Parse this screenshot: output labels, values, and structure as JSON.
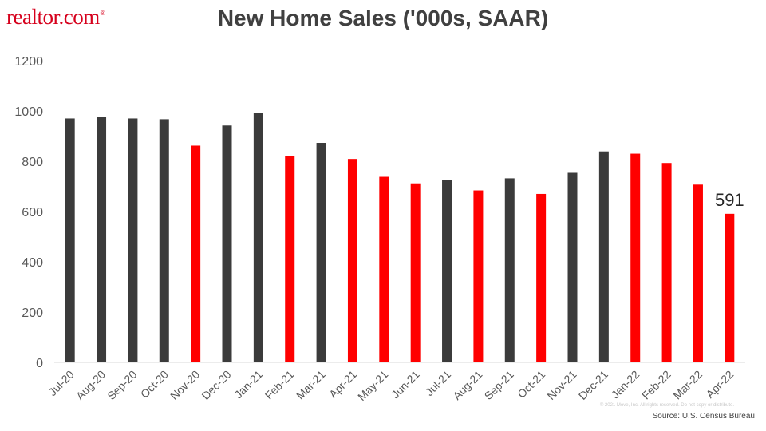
{
  "logo": {
    "text": "realtor.com",
    "mark": "®"
  },
  "chart_data": {
    "type": "bar",
    "title": "New Home Sales ('000s, SAAR)",
    "xlabel": "",
    "ylabel": "",
    "ylim": [
      0,
      1200
    ],
    "yticks": [
      "0",
      "200",
      "400",
      "600",
      "800",
      "1000",
      "1200"
    ],
    "grid": false,
    "categories": [
      "Jul-20",
      "Aug-20",
      "Sep-20",
      "Oct-20",
      "Nov-20",
      "Dec-20",
      "Jan-21",
      "Feb-21",
      "Mar-21",
      "Apr-21",
      "May-21",
      "Jun-21",
      "Jul-21",
      "Aug-21",
      "Sep-21",
      "Oct-21",
      "Nov-21",
      "Dec-21",
      "Jan-22",
      "Feb-22",
      "Mar-22",
      "Apr-22"
    ],
    "values": [
      970,
      977,
      970,
      967,
      862,
      942,
      993,
      821,
      873,
      809,
      738,
      712,
      725,
      684,
      732,
      670,
      754,
      839,
      830,
      793,
      707,
      591
    ],
    "bar_colors": [
      "#3b3b3b",
      "#3b3b3b",
      "#3b3b3b",
      "#3b3b3b",
      "#ff0000",
      "#3b3b3b",
      "#3b3b3b",
      "#ff0000",
      "#3b3b3b",
      "#ff0000",
      "#ff0000",
      "#ff0000",
      "#3b3b3b",
      "#ff0000",
      "#3b3b3b",
      "#ff0000",
      "#3b3b3b",
      "#3b3b3b",
      "#ff0000",
      "#ff0000",
      "#ff0000",
      "#ff0000"
    ],
    "annotation": {
      "text": "591",
      "category": "Apr-22"
    }
  },
  "footer": {
    "copyright": "© 2021 Move, Inc. All rights reserved. Do not copy or distribute.",
    "source": "Source: U.S. Census Bureau"
  }
}
